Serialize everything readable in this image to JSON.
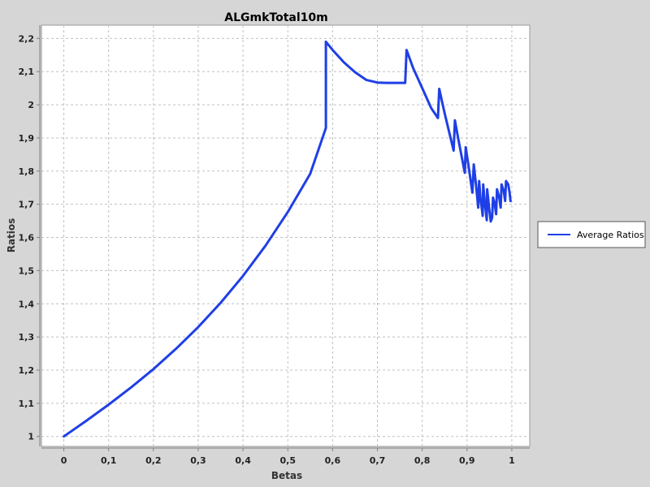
{
  "chart_data": {
    "type": "line",
    "title": "ALGmkTotal10m",
    "xlabel": "Betas",
    "ylabel": "Ratios",
    "xlim": [
      -0.05,
      1.04
    ],
    "ylim": [
      0.97,
      2.24
    ],
    "x_ticks": [
      0,
      0.1,
      0.2,
      0.3,
      0.4,
      0.5,
      0.6,
      0.7,
      0.8,
      0.9,
      1
    ],
    "x_tick_labels": [
      "0",
      "0,1",
      "0,2",
      "0,3",
      "0,4",
      "0,5",
      "0,6",
      "0,7",
      "0,8",
      "0,9",
      "1"
    ],
    "y_ticks": [
      1,
      1.1,
      1.2,
      1.3,
      1.4,
      1.5,
      1.6,
      1.7,
      1.8,
      1.9,
      2,
      2.1,
      2.2
    ],
    "y_tick_labels": [
      "1",
      "1,1",
      "1,2",
      "1,3",
      "1,4",
      "1,5",
      "1,6",
      "1,7",
      "1,8",
      "1,9",
      "2",
      "2,1",
      "2,2"
    ],
    "grid": true,
    "legend_position": "right",
    "colors": {
      "series": "#1f3fe6",
      "plot_bg": "#ffffff",
      "page_bg": "#d6d6d6",
      "grid": "#c0c0c0"
    },
    "series": [
      {
        "name": "Average Ratios",
        "x": [
          0,
          0.05,
          0.1,
          0.15,
          0.2,
          0.25,
          0.3,
          0.35,
          0.4,
          0.45,
          0.5,
          0.55,
          0.585,
          0.585,
          0.6,
          0.625,
          0.65,
          0.675,
          0.7,
          0.72,
          0.74,
          0.762,
          0.765,
          0.78,
          0.8,
          0.82,
          0.835,
          0.838,
          0.85,
          0.87,
          0.873,
          0.88,
          0.89,
          0.895,
          0.897,
          0.905,
          0.912,
          0.915,
          0.92,
          0.925,
          0.927,
          0.93,
          0.935,
          0.936,
          0.94,
          0.944,
          0.945,
          0.95,
          0.953,
          0.956,
          0.958,
          0.962,
          0.965,
          0.967,
          0.972,
          0.975,
          0.977,
          0.982,
          0.985,
          0.987,
          0.992,
          0.995,
          0.997
        ],
        "y": [
          1.0,
          1.047,
          1.096,
          1.148,
          1.203,
          1.264,
          1.33,
          1.403,
          1.484,
          1.575,
          1.677,
          1.792,
          1.93,
          2.19,
          2.165,
          2.128,
          2.098,
          2.075,
          2.067,
          2.066,
          2.066,
          2.066,
          2.165,
          2.11,
          2.05,
          1.99,
          1.96,
          2.048,
          1.975,
          1.862,
          1.953,
          1.9,
          1.83,
          1.795,
          1.872,
          1.8,
          1.735,
          1.82,
          1.76,
          1.69,
          1.77,
          1.72,
          1.665,
          1.76,
          1.7,
          1.652,
          1.745,
          1.68,
          1.648,
          1.66,
          1.72,
          1.7,
          1.67,
          1.745,
          1.72,
          1.69,
          1.76,
          1.74,
          1.71,
          1.77,
          1.76,
          1.735,
          1.71
        ]
      }
    ]
  }
}
